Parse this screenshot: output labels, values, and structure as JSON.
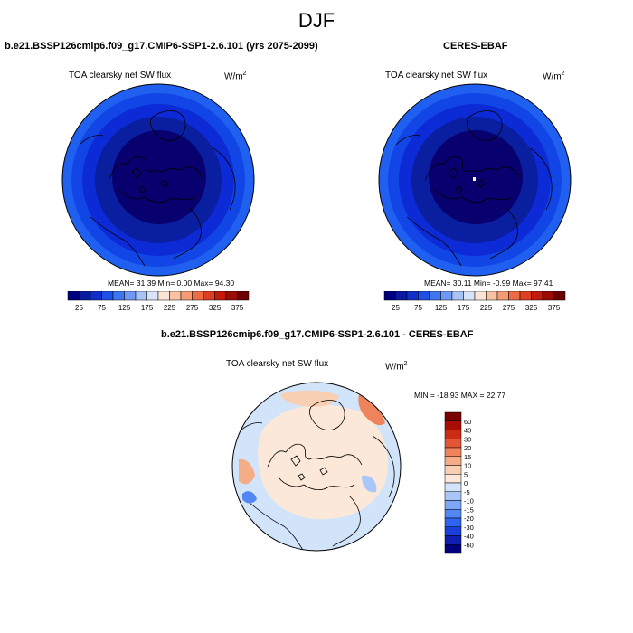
{
  "season": "DJF",
  "colors": {
    "hblue_dark": "#08006e",
    "hblue_mid": "#0a1ea0",
    "hblue_ring": "#0c2ad6",
    "hblue_outer": "#1245e6",
    "hblue_light": "#1f60f0"
  },
  "chart_data": [
    {
      "type": "heatmap",
      "title": "b.e21.BSSP126cmip6.f09_g17.CMIP6-SSP1-2.6.101 (yrs 2075-2099)",
      "variable": "TOA clearsky net SW flux",
      "units": "W/m",
      "units_exp": "2",
      "projection": "north polar stereographic",
      "stats": {
        "mean": 31.39,
        "min": 0.0,
        "max": 94.3
      },
      "stats_text": "MEAN=  31.39  Min=   0.00  Max=  94.30",
      "colorbar": {
        "orientation": "horizontal",
        "levels": [
          25,
          50,
          75,
          100,
          125,
          150,
          175,
          200,
          225,
          250,
          275,
          300,
          325,
          350,
          375
        ],
        "tick_labels": [
          "25",
          "75",
          "125",
          "175",
          "225",
          "275",
          "325",
          "375"
        ],
        "colors": [
          "#00007f",
          "#0a1aa0",
          "#102fc8",
          "#1f50e6",
          "#3e76f0",
          "#7099f5",
          "#a7c3f7",
          "#d6e3f9",
          "#fbe4d6",
          "#f9c2a2",
          "#f59a72",
          "#ee6c45",
          "#de3f22",
          "#c31a0c",
          "#9c0b04",
          "#6a0000"
        ]
      }
    },
    {
      "type": "heatmap",
      "title": "CERES-EBAF",
      "variable": "TOA clearsky net SW flux",
      "units": "W/m",
      "units_exp": "2",
      "projection": "north polar stereographic",
      "stats": {
        "mean": 30.11,
        "min": -0.99,
        "max": 97.41
      },
      "stats_text": "MEAN=  30.11  Min=  -0.99  Max=  97.41",
      "colorbar": {
        "orientation": "horizontal",
        "levels": [
          25,
          50,
          75,
          100,
          125,
          150,
          175,
          200,
          225,
          250,
          275,
          300,
          325,
          350,
          375
        ],
        "tick_labels": [
          "25",
          "75",
          "125",
          "175",
          "225",
          "275",
          "325",
          "375"
        ],
        "colors": [
          "#00007f",
          "#0a1aa0",
          "#102fc8",
          "#1f50e6",
          "#3e76f0",
          "#7099f5",
          "#a7c3f7",
          "#d6e3f9",
          "#fbe4d6",
          "#f9c2a2",
          "#f59a72",
          "#ee6c45",
          "#de3f22",
          "#c31a0c",
          "#9c0b04",
          "#6a0000"
        ]
      }
    },
    {
      "type": "heatmap",
      "title": "b.e21.BSSP126cmip6.f09_g17.CMIP6-SSP1-2.6.101 - CERES-EBAF",
      "variable": "TOA clearsky net SW flux",
      "units": "W/m",
      "units_exp": "2",
      "projection": "north polar stereographic",
      "stats": {
        "min": -18.93,
        "max": 22.77
      },
      "stats_text": "MIN = -18.93 MAX =  22.77",
      "colorbar": {
        "orientation": "vertical",
        "levels": [
          -60,
          -40,
          -30,
          -20,
          -15,
          -10,
          -5,
          0,
          5,
          10,
          15,
          20,
          30,
          40,
          60
        ],
        "tick_labels": [
          "60",
          "40",
          "30",
          "20",
          "15",
          "10",
          "5",
          "0",
          "-5",
          "-10",
          "-15",
          "-20",
          "-30",
          "-40",
          "-60"
        ],
        "colors": [
          "#00007f",
          "#0d1eb0",
          "#1a3fd8",
          "#2f62ee",
          "#5286f4",
          "#7ea6f6",
          "#a9c6f8",
          "#d2e4fa",
          "#fbe8d8",
          "#f9cfb3",
          "#f5ad88",
          "#ef845c",
          "#e35734",
          "#cc2b14",
          "#a80e05",
          "#7a0000"
        ]
      }
    }
  ]
}
